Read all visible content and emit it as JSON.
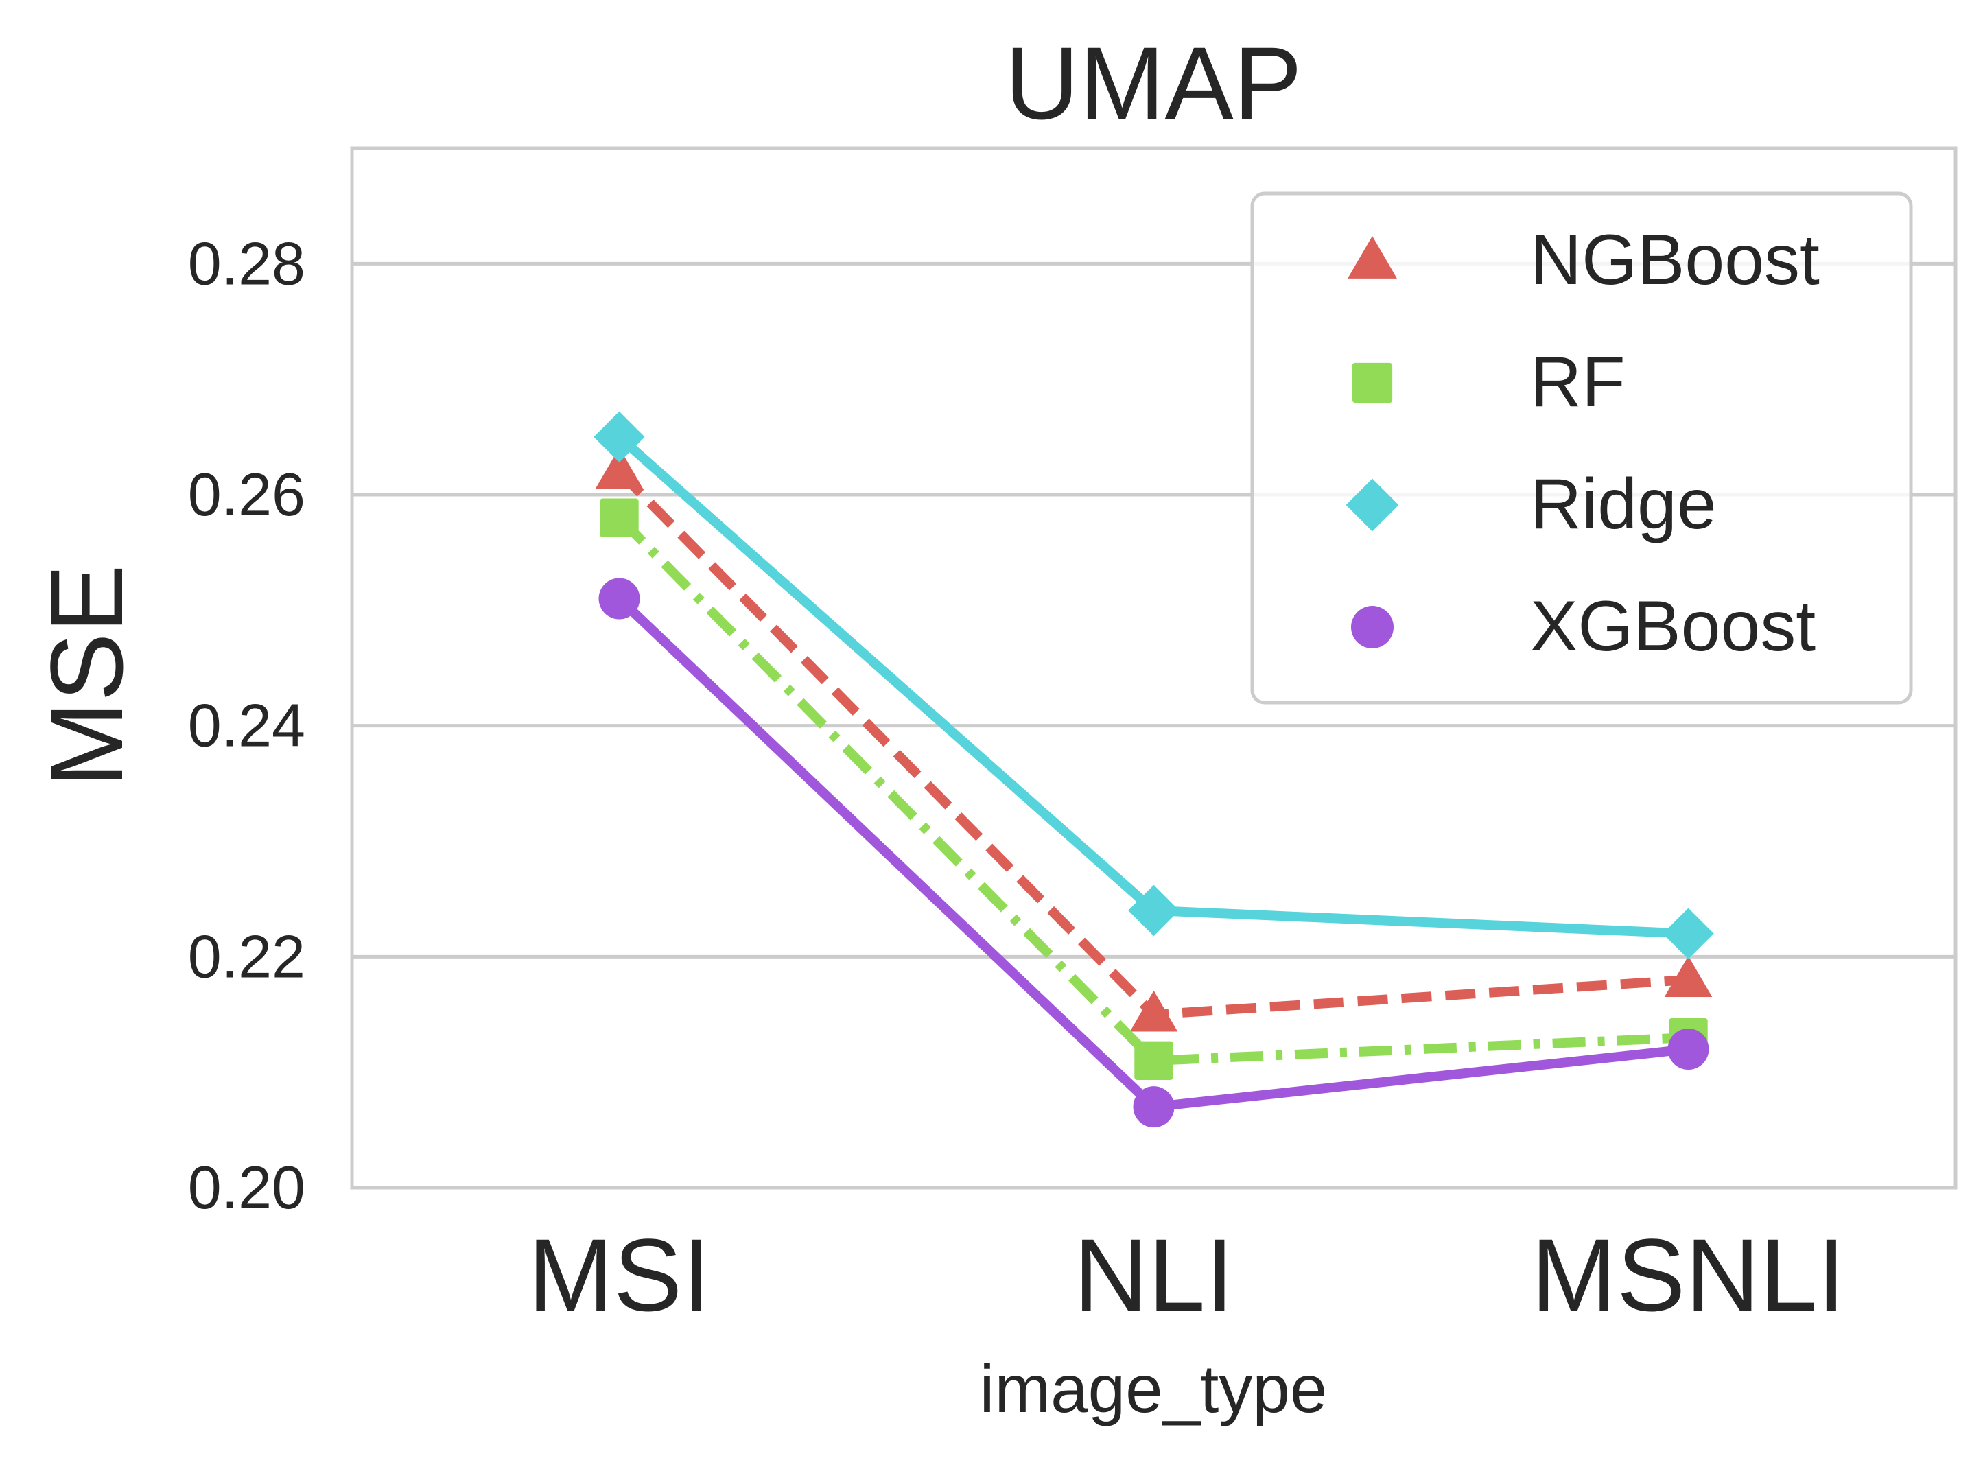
{
  "chart_data": {
    "type": "line",
    "title": "UMAP",
    "xlabel": "image_type",
    "ylabel": "MSE",
    "categories": [
      "MSI",
      "NLI",
      "MSNLI"
    ],
    "ylim": [
      0.2,
      0.29
    ],
    "yticks": [
      0.2,
      0.22,
      0.24,
      0.26,
      0.28
    ],
    "ytick_labels": [
      "0.20",
      "0.22",
      "0.24",
      "0.26",
      "0.28"
    ],
    "grid": "horizontal",
    "legend_position": "upper right",
    "series": [
      {
        "name": "NGBoost",
        "values": [
          0.262,
          0.215,
          0.218
        ],
        "color": "#db5f57",
        "marker": "triangle",
        "linestyle": "dashed"
      },
      {
        "name": "RF",
        "values": [
          0.258,
          0.211,
          0.213
        ],
        "color": "#91db57",
        "marker": "square",
        "linestyle": "dashdot"
      },
      {
        "name": "Ridge",
        "values": [
          0.265,
          0.224,
          0.222
        ],
        "color": "#57d3db",
        "marker": "diamond",
        "linestyle": "solid"
      },
      {
        "name": "XGBoost",
        "values": [
          0.251,
          0.207,
          0.212
        ],
        "color": "#a157db",
        "marker": "circle",
        "linestyle": "solid"
      }
    ]
  }
}
